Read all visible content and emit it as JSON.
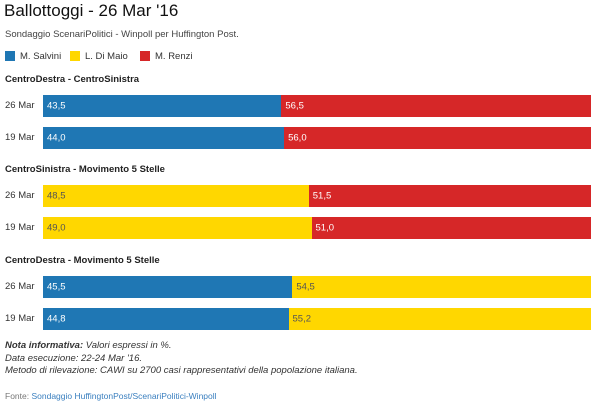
{
  "title": "Ballottoggi - 26 Mar '16",
  "subtitle": "Sondaggio ScenariPolitici - Winpoll per Huffington Post.",
  "legend": [
    {
      "label": "M. Salvini",
      "color": "#1f77b4"
    },
    {
      "label": "L. Di Maio",
      "color": "#ffd700"
    },
    {
      "label": "M. Renzi",
      "color": "#d62728"
    }
  ],
  "chart_data": {
    "type": "bar",
    "orientation": "horizontal",
    "stacked": true,
    "xlim": [
      0,
      100
    ],
    "groups": [
      {
        "title": "CentroDestra - CentroSinistra",
        "rows": [
          {
            "label": "26 Mar",
            "segments": [
              {
                "series": "M. Salvini",
                "value": 43.5,
                "text": "43,5"
              },
              {
                "series": "M. Renzi",
                "value": 56.5,
                "text": "56,5"
              }
            ]
          },
          {
            "label": "19 Mar",
            "segments": [
              {
                "series": "M. Salvini",
                "value": 44.0,
                "text": "44,0"
              },
              {
                "series": "M. Renzi",
                "value": 56.0,
                "text": "56,0"
              }
            ]
          }
        ]
      },
      {
        "title": "CentroSinistra - Movimento 5 Stelle",
        "rows": [
          {
            "label": "26 Mar",
            "segments": [
              {
                "series": "L. Di Maio",
                "value": 48.5,
                "text": "48,5"
              },
              {
                "series": "M. Renzi",
                "value": 51.5,
                "text": "51,5"
              }
            ]
          },
          {
            "label": "19 Mar",
            "segments": [
              {
                "series": "L. Di Maio",
                "value": 49.0,
                "text": "49,0"
              },
              {
                "series": "M. Renzi",
                "value": 51.0,
                "text": "51,0"
              }
            ]
          }
        ]
      },
      {
        "title": "CentroDestra - Movimento 5 Stelle",
        "rows": [
          {
            "label": "26 Mar",
            "segments": [
              {
                "series": "M. Salvini",
                "value": 45.5,
                "text": "45,5"
              },
              {
                "series": "L. Di Maio",
                "value": 54.5,
                "text": "54,5"
              }
            ]
          },
          {
            "label": "19 Mar",
            "segments": [
              {
                "series": "M. Salvini",
                "value": 44.8,
                "text": "44,8"
              },
              {
                "series": "L. Di Maio",
                "value": 55.2,
                "text": "55,2"
              }
            ]
          }
        ]
      }
    ]
  },
  "notes": {
    "heading": "Nota informativa:",
    "line1": " Valori espressi in %.",
    "line2": "Data esecuzione: 22-24 Mar '16.",
    "line3": "Metodo di rilevazione: CAWI su 2700 casi rappresentativi della popolazione italiana."
  },
  "source": {
    "prefix": "Fonte: ",
    "link": "Sondaggio HuffingtonPost/ScenariPolitici-Winpoll"
  }
}
